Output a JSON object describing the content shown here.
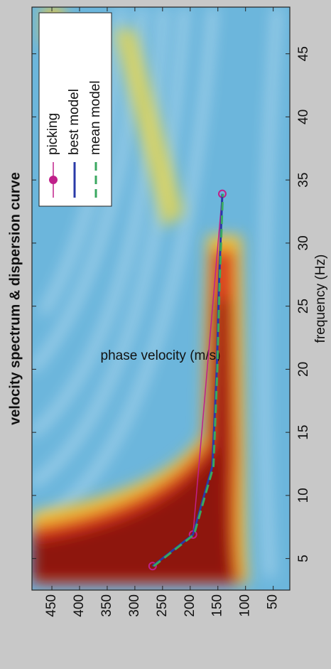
{
  "chart_data": {
    "type": "line",
    "title": "velocity spectrum & dispersion curve",
    "x_label": "frequency (Hz)",
    "y_label": "phase velocity (m/s)",
    "xlim": [
      2.5,
      48.7
    ],
    "ylim": [
      20,
      486
    ],
    "xticks": [
      5,
      10,
      15,
      20,
      25,
      30,
      35,
      40,
      45
    ],
    "yticks": [
      50,
      100,
      150,
      200,
      250,
      300,
      350,
      400,
      450
    ],
    "legend": "upper right",
    "series": [
      {
        "name": "picking",
        "color": "#c0208a",
        "style": "marker",
        "x": [
          4.4,
          6.9,
          33.9
        ],
        "values": [
          268,
          195,
          142
        ]
      },
      {
        "name": "best model",
        "color": "#2a3aa8",
        "style": "solid",
        "x": [
          4.4,
          6.9,
          12.3,
          20,
          26.7,
          33.9
        ],
        "values": [
          268,
          195,
          160,
          152,
          148,
          142
        ]
      },
      {
        "name": "mean model",
        "color": "#3aa860",
        "style": "dashed",
        "x": [
          4.4,
          6.9,
          12.3,
          20,
          26.7,
          33.9
        ],
        "values": [
          266,
          193,
          158,
          151,
          147,
          141
        ]
      }
    ]
  }
}
